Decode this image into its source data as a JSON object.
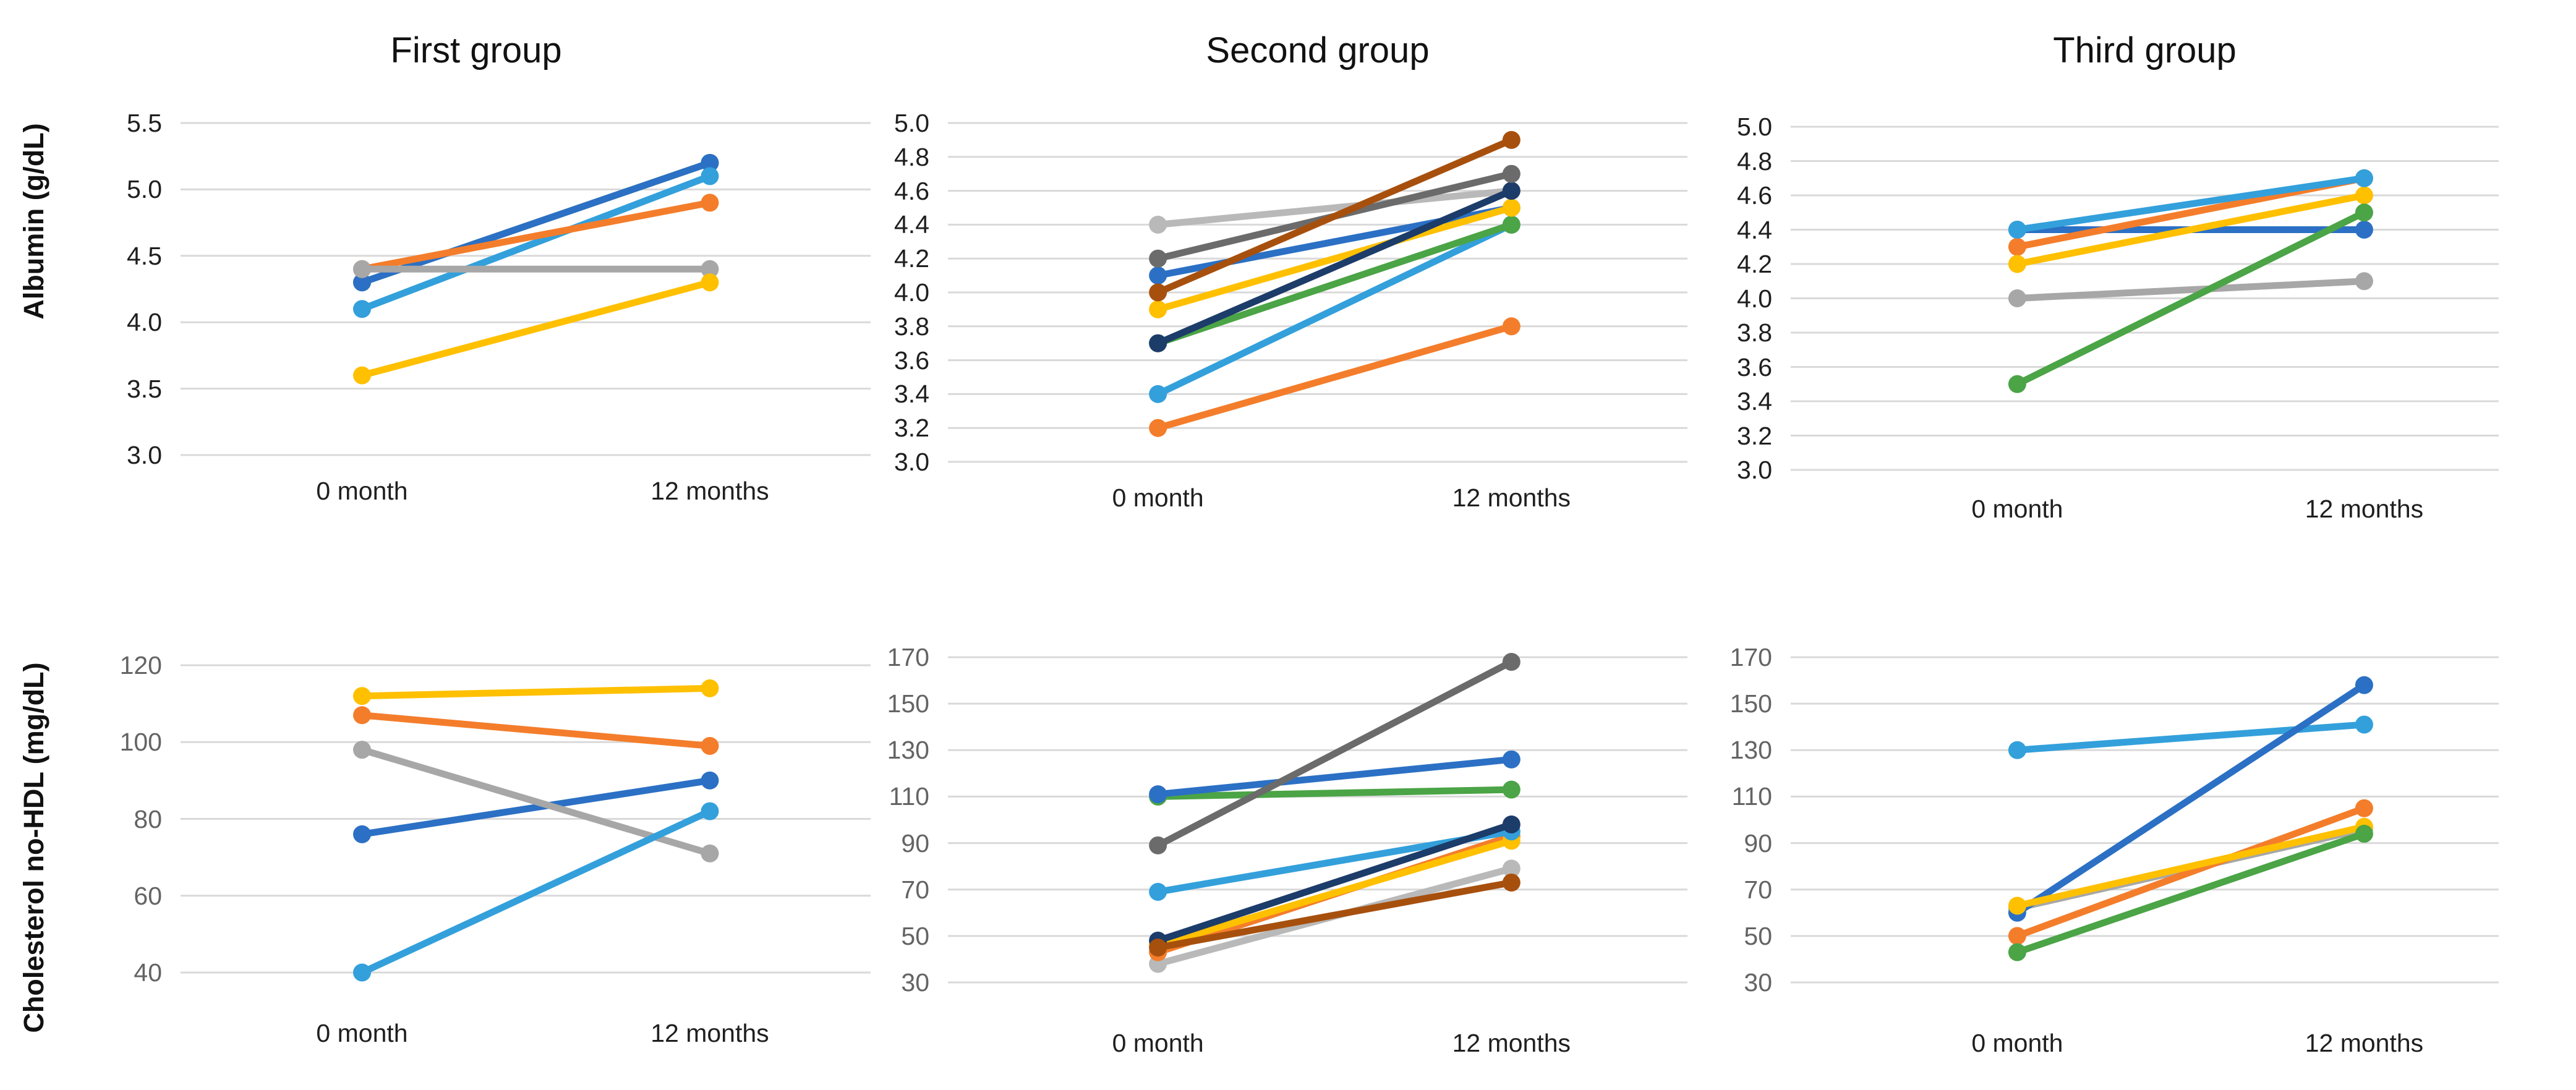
{
  "page": {
    "background": "#FFFFFF",
    "groups": [
      "First group",
      "Second group",
      "Third group"
    ],
    "measures": [
      "Albumin (g/dL)",
      "Cholesterol no-HDL (mg/dL)"
    ],
    "x_categories": [
      "0 month",
      "12 months"
    ]
  },
  "colors": {
    "blue": "#2B70C4",
    "lightblue": "#33A0DB",
    "orange": "#F47D2B",
    "yellow": "#FFC000",
    "gray": "#A7A7A7",
    "lightgray": "#B9B9B9",
    "darkgray": "#6B6B6B",
    "green": "#4BA446",
    "navy": "#1C3C69",
    "darkred": "#A7500E",
    "gridline": "#D9D9D9"
  },
  "axis_titles": {
    "row1": "Albumin (g/dL)",
    "row2": "Cholesterol no-HDL (mg/dL)"
  },
  "chart_data": [
    {
      "type": "line",
      "title": "First group",
      "group": "First group",
      "measure": "Albumin (g/dL)",
      "x": [
        "0 month",
        "12 months"
      ],
      "ylim": [
        3.0,
        5.5
      ],
      "grid": true,
      "legend": "none",
      "yticks": [
        {
          "v": 5.5,
          "label": "5.5"
        },
        {
          "v": 5.0,
          "label": "5.0"
        },
        {
          "v": 4.5,
          "label": "4.5"
        },
        {
          "v": 4.0,
          "label": "4.0"
        },
        {
          "v": 3.5,
          "label": "3.5"
        },
        {
          "v": 3.0,
          "label": "3.0"
        }
      ],
      "series": [
        {
          "color": "green",
          "values": [
            4.3,
            5.2
          ]
        },
        {
          "color": "blue",
          "values": [
            4.3,
            5.2
          ]
        },
        {
          "color": "lightblue",
          "values": [
            4.1,
            5.1
          ]
        },
        {
          "color": "orange",
          "values": [
            4.4,
            4.9
          ]
        },
        {
          "color": "gray",
          "values": [
            4.4,
            4.4
          ]
        },
        {
          "color": "yellow",
          "values": [
            3.6,
            4.3
          ]
        }
      ]
    },
    {
      "type": "line",
      "title": "Second group",
      "group": "Second group",
      "measure": "Albumin (g/dL)",
      "x": [
        "0 month",
        "12 months"
      ],
      "ylim": [
        3.0,
        5.0
      ],
      "grid": true,
      "legend": "none",
      "yticks": [
        {
          "v": 5.0,
          "label": "5.0"
        },
        {
          "v": 4.8,
          "label": "4.8"
        },
        {
          "v": 4.6,
          "label": "4.6"
        },
        {
          "v": 4.4,
          "label": "4.4"
        },
        {
          "v": 4.2,
          "label": "4.2"
        },
        {
          "v": 4.0,
          "label": "4.0"
        },
        {
          "v": 3.8,
          "label": "3.8"
        },
        {
          "v": 3.6,
          "label": "3.6"
        },
        {
          "v": 3.4,
          "label": "3.4"
        },
        {
          "v": 3.2,
          "label": "3.2"
        },
        {
          "v": 3.0,
          "label": "3.0"
        }
      ],
      "series": [
        {
          "color": "lightgray",
          "values": [
            4.4,
            4.6
          ]
        },
        {
          "color": "blue",
          "values": [
            4.1,
            4.5
          ]
        },
        {
          "color": "lightblue",
          "values": [
            3.4,
            4.4
          ]
        },
        {
          "color": "green",
          "values": [
            3.7,
            4.4
          ]
        },
        {
          "color": "yellow",
          "values": [
            3.9,
            4.5
          ]
        },
        {
          "color": "navy",
          "values": [
            3.7,
            4.6
          ]
        },
        {
          "color": "darkgray",
          "values": [
            4.2,
            4.7
          ]
        },
        {
          "color": "darkred",
          "values": [
            4.0,
            4.9
          ]
        },
        {
          "color": "orange",
          "values": [
            3.2,
            3.8
          ]
        }
      ]
    },
    {
      "type": "line",
      "title": "Third group",
      "group": "Third group",
      "measure": "Albumin (g/dL)",
      "x": [
        "0 month",
        "12 months"
      ],
      "ylim": [
        3.0,
        5.0
      ],
      "grid": true,
      "legend": "none",
      "yticks": [
        {
          "v": 5.0,
          "label": "5.0"
        },
        {
          "v": 4.8,
          "label": "4.8"
        },
        {
          "v": 4.6,
          "label": "4.6"
        },
        {
          "v": 4.4,
          "label": "4.4"
        },
        {
          "v": 4.2,
          "label": "4.2"
        },
        {
          "v": 4.0,
          "label": "4.0"
        },
        {
          "v": 3.8,
          "label": "3.8"
        },
        {
          "v": 3.6,
          "label": "3.6"
        },
        {
          "v": 3.4,
          "label": "3.4"
        },
        {
          "v": 3.2,
          "label": "3.2"
        },
        {
          "v": 3.0,
          "label": "3.0"
        }
      ],
      "series": [
        {
          "color": "blue",
          "values": [
            4.4,
            4.4
          ]
        },
        {
          "color": "gray",
          "values": [
            4.0,
            4.1
          ]
        },
        {
          "color": "orange",
          "values": [
            4.3,
            4.7
          ]
        },
        {
          "color": "yellow",
          "values": [
            4.2,
            4.6
          ]
        },
        {
          "color": "green",
          "values": [
            3.5,
            4.5
          ]
        },
        {
          "color": "lightblue",
          "values": [
            4.4,
            4.7
          ]
        }
      ]
    },
    {
      "type": "line",
      "title": "",
      "group": "First group",
      "measure": "Cholesterol no-HDL (mg/dL)",
      "x": [
        "0 month",
        "12 months"
      ],
      "ylim": [
        40,
        120
      ],
      "grid": true,
      "legend": "none",
      "yticks": [
        {
          "v": 120,
          "label": "120"
        },
        {
          "v": 100,
          "label": "100"
        },
        {
          "v": 80,
          "label": "80"
        },
        {
          "v": 60,
          "label": "60"
        },
        {
          "v": 40,
          "label": "40"
        }
      ],
      "series": [
        {
          "color": "blue",
          "values": [
            76,
            90
          ]
        },
        {
          "color": "gray",
          "values": [
            98,
            71
          ]
        },
        {
          "color": "lightblue",
          "values": [
            40,
            82
          ]
        },
        {
          "color": "orange",
          "values": [
            107,
            99
          ]
        },
        {
          "color": "yellow",
          "values": [
            112,
            114
          ]
        }
      ]
    },
    {
      "type": "line",
      "title": "",
      "group": "Second group",
      "measure": "Cholesterol no-HDL (mg/dL)",
      "x": [
        "0 month",
        "12 months"
      ],
      "ylim": [
        30,
        170
      ],
      "grid": true,
      "legend": "none",
      "yticks": [
        {
          "v": 170,
          "label": "170"
        },
        {
          "v": 150,
          "label": "150"
        },
        {
          "v": 130,
          "label": "130"
        },
        {
          "v": 110,
          "label": "110"
        },
        {
          "v": 90,
          "label": "90"
        },
        {
          "v": 70,
          "label": "70"
        },
        {
          "v": 50,
          "label": "50"
        },
        {
          "v": 30,
          "label": "30"
        }
      ],
      "series": [
        {
          "color": "lightgray",
          "values": [
            38,
            79
          ]
        },
        {
          "color": "orange",
          "values": [
            43,
            93
          ]
        },
        {
          "color": "yellow",
          "values": [
            46,
            91
          ]
        },
        {
          "color": "lightblue",
          "values": [
            69,
            95
          ]
        },
        {
          "color": "navy",
          "values": [
            48,
            98
          ]
        },
        {
          "color": "darkred",
          "values": [
            45,
            73
          ]
        },
        {
          "color": "green",
          "values": [
            110,
            113
          ]
        },
        {
          "color": "blue",
          "values": [
            111,
            126
          ]
        },
        {
          "color": "darkgray",
          "values": [
            89,
            168
          ]
        }
      ]
    },
    {
      "type": "line",
      "title": "",
      "group": "Third group",
      "measure": "Cholesterol no-HDL (mg/dL)",
      "x": [
        "0 month",
        "12 months"
      ],
      "ylim": [
        30,
        170
      ],
      "grid": true,
      "legend": "none",
      "yticks": [
        {
          "v": 170,
          "label": "170"
        },
        {
          "v": 150,
          "label": "150"
        },
        {
          "v": 130,
          "label": "130"
        },
        {
          "v": 110,
          "label": "110"
        },
        {
          "v": 90,
          "label": "90"
        },
        {
          "v": 70,
          "label": "70"
        },
        {
          "v": 50,
          "label": "50"
        },
        {
          "v": 30,
          "label": "30"
        }
      ],
      "series": [
        {
          "color": "gray",
          "values": [
            62,
            96
          ]
        },
        {
          "color": "lightblue",
          "values": [
            130,
            141
          ]
        },
        {
          "color": "blue",
          "values": [
            60,
            158
          ]
        },
        {
          "color": "orange",
          "values": [
            50,
            105
          ]
        },
        {
          "color": "yellow",
          "values": [
            63,
            97
          ]
        },
        {
          "color": "green",
          "values": [
            43,
            94
          ]
        }
      ]
    }
  ]
}
